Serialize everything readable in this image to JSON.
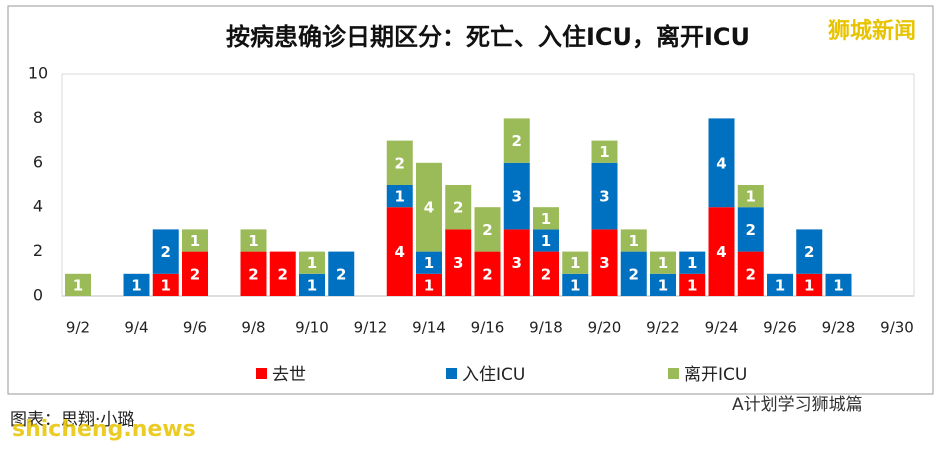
{
  "chart_data": {
    "type": "stacked_bar",
    "title": "按病患确诊日期区分：死亡、入住ICU，离开ICU",
    "categories": [
      "9/2",
      null,
      "9/4",
      null,
      "9/6",
      null,
      "9/8",
      null,
      "9/10",
      null,
      "9/12",
      null,
      "9/14",
      null,
      "9/16",
      null,
      "9/18",
      null,
      "9/20",
      null,
      "9/22",
      null,
      "9/24",
      null,
      "9/26",
      null,
      "9/28",
      null,
      "9/30"
    ],
    "series": [
      {
        "name": "去世",
        "color": "#ff0000",
        "values": [
          0,
          0,
          0,
          1,
          2,
          0,
          2,
          2,
          0,
          0,
          0,
          4,
          1,
          3,
          2,
          3,
          2,
          0,
          3,
          0,
          0,
          1,
          4,
          2,
          0,
          1,
          0,
          0,
          0
        ]
      },
      {
        "name": "入住ICU",
        "color": "#0070c0",
        "values": [
          0,
          0,
          1,
          2,
          0,
          0,
          0,
          0,
          1,
          2,
          0,
          1,
          1,
          0,
          0,
          3,
          1,
          1,
          3,
          2,
          1,
          1,
          4,
          2,
          1,
          2,
          1,
          0,
          0
        ]
      },
      {
        "name": "离开ICU",
        "color": "#9bbb59",
        "values": [
          1,
          0,
          0,
          0,
          1,
          0,
          1,
          0,
          1,
          0,
          0,
          2,
          4,
          2,
          2,
          2,
          1,
          1,
          1,
          1,
          1,
          0,
          0,
          1,
          0,
          0,
          0,
          0,
          0
        ]
      }
    ],
    "ylim": [
      0,
      10
    ],
    "yticks": [
      0,
      2,
      4,
      6,
      8,
      10
    ],
    "grid": false,
    "watermark": "狮城新闻",
    "credit": "图表：思翔·小璐",
    "source_account": "A计划学习狮城篇",
    "site": "shicheng.news"
  }
}
